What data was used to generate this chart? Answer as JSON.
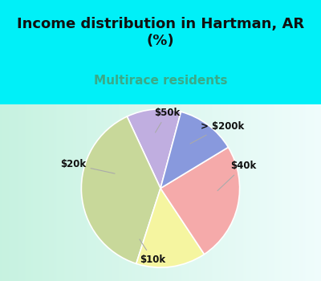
{
  "title": "Income distribution in Hartman, AR\n(%)",
  "subtitle": "Multirace residents",
  "labels": [
    "> $200k",
    "$40k",
    "$10k",
    "$20k",
    "$50k"
  ],
  "values": [
    10.5,
    36.0,
    13.5,
    23.0,
    11.5
  ],
  "colors": [
    "#c0aee0",
    "#c8d89a",
    "#f5f5a0",
    "#f5aaaa",
    "#8899dd"
  ],
  "bg_color": "#00f0f8",
  "chart_bg_left": "#c8eeda",
  "chart_bg_right": "#f0f8f8",
  "title_fontsize": 13,
  "subtitle_fontsize": 11,
  "subtitle_color": "#3aaa88",
  "title_color": "#111111",
  "startangle": 75,
  "label_fontsize": 8.5
}
